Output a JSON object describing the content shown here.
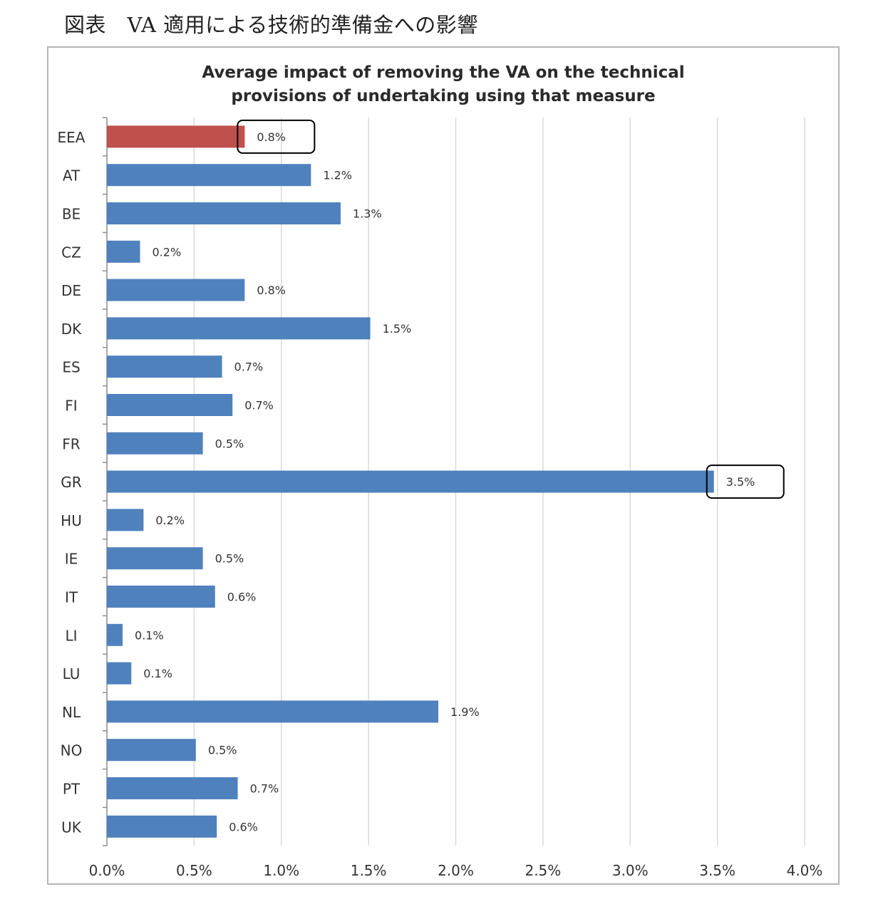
{
  "caption": "図表　VA 適用による技術的準備金への影響",
  "chart_data": {
    "type": "bar",
    "orientation": "horizontal",
    "title_line1": "Average impact of removing the VA on the technical",
    "title_line2": "provisions of undertaking using that measure",
    "categories": [
      "EEA",
      "AT",
      "BE",
      "CZ",
      "DE",
      "DK",
      "ES",
      "FI",
      "FR",
      "GR",
      "HU",
      "IE",
      "IT",
      "LI",
      "LU",
      "NL",
      "NO",
      "PT",
      "UK"
    ],
    "values": [
      0.79,
      1.17,
      1.34,
      0.19,
      0.79,
      1.51,
      0.66,
      0.72,
      0.55,
      3.48,
      0.21,
      0.55,
      0.62,
      0.09,
      0.14,
      1.9,
      0.51,
      0.75,
      0.63
    ],
    "value_labels": [
      "0.8%",
      "1.2%",
      "1.3%",
      "0.2%",
      "0.8%",
      "1.5%",
      "0.7%",
      "0.7%",
      "0.5%",
      "3.5%",
      "0.2%",
      "0.5%",
      "0.6%",
      "0.1%",
      "0.1%",
      "1.9%",
      "0.5%",
      "0.7%",
      "0.6%"
    ],
    "xlim": [
      0,
      4.0
    ],
    "x_ticks": [
      "0.0%",
      "0.5%",
      "1.0%",
      "1.5%",
      "2.0%",
      "2.5%",
      "3.0%",
      "3.5%",
      "4.0%"
    ],
    "grid": true,
    "colors": {
      "default": "#4f81bd",
      "highlight": "#c0504d"
    },
    "highlight_category": "EEA",
    "boxed_labels": [
      "EEA",
      "GR"
    ]
  }
}
